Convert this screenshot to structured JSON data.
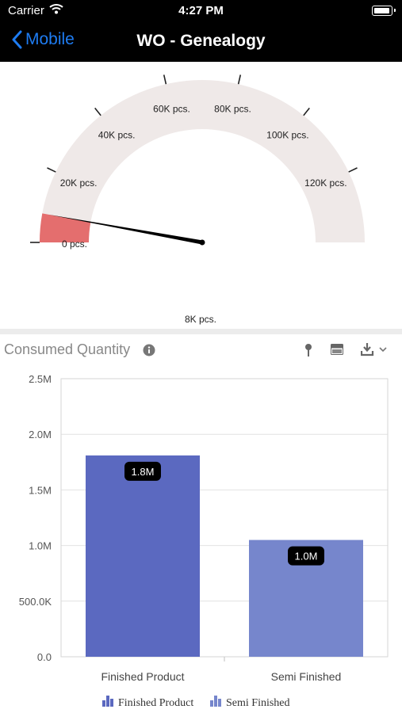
{
  "status_bar": {
    "carrier": "Carrier",
    "time": "4:27 PM",
    "wifi_icon": "wifi-icon",
    "battery_icon": "battery-icon"
  },
  "nav": {
    "back_label": "Mobile",
    "back_icon": "chevron-left-icon",
    "title": "WO - Genealogy"
  },
  "gauge": {
    "min": 0,
    "max": 140000,
    "value": 8000,
    "value_label": "8K pcs.",
    "ticks": [
      {
        "value": 0,
        "label": "0 pcs."
      },
      {
        "value": 20000,
        "label": "20K pcs."
      },
      {
        "value": 40000,
        "label": "40K pcs."
      },
      {
        "value": 60000,
        "label": "60K pcs."
      },
      {
        "value": 80000,
        "label": "80K pcs."
      },
      {
        "value": 100000,
        "label": "100K pcs."
      },
      {
        "value": 120000,
        "label": "120K pcs."
      }
    ],
    "band_color": "#efe9e8",
    "fill_color": "#e46e6e",
    "needle_color": "#000000"
  },
  "chart_header": {
    "title": "Consumed Quantity",
    "info_icon": "info-icon",
    "pin_icon": "pin-icon",
    "table_icon": "table-icon",
    "download_icon": "download-icon"
  },
  "chart_data": {
    "type": "bar",
    "categories": [
      "Finished Product",
      "Semi Finished"
    ],
    "values": [
      1810000,
      1050000
    ],
    "data_labels": [
      "1.8M",
      "1.0M"
    ],
    "colors": [
      "#5b69c0",
      "#7686cc"
    ],
    "ylim": [
      0,
      2500000
    ],
    "y_ticks": [
      {
        "value": 0,
        "label": "0.0"
      },
      {
        "value": 500000,
        "label": "500.0K"
      },
      {
        "value": 1000000,
        "label": "1.0M"
      },
      {
        "value": 1500000,
        "label": "1.5M"
      },
      {
        "value": 2000000,
        "label": "2.0M"
      },
      {
        "value": 2500000,
        "label": "2.5M"
      }
    ],
    "grid": true,
    "legend": [
      "Finished Product",
      "Semi Finished"
    ],
    "legend_position": "bottom",
    "legend_icon": "bar-chart-icon"
  }
}
